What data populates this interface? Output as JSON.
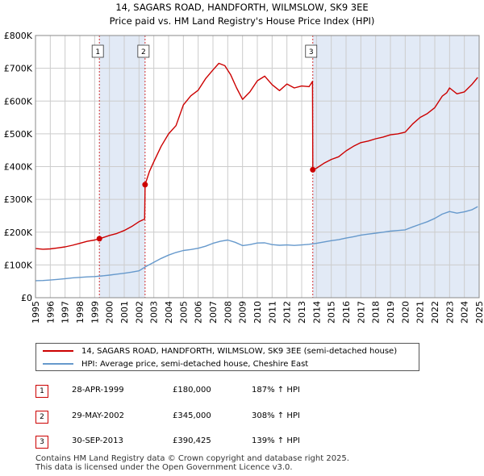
{
  "title_line1": "14, SAGARS ROAD, HANDFORTH, WILMSLOW, SK9 3EE",
  "title_line2": "Price paid vs. HM Land Registry's House Price Index (HPI)",
  "colors": {
    "property": "#cc0000",
    "hpi": "#6699cc",
    "shade": "#dde6f4",
    "grid": "#cccccc"
  },
  "chart_data": {
    "type": "line",
    "xlim": [
      1995,
      2025
    ],
    "ylim": [
      0,
      800000
    ],
    "x_ticks": [
      "1995",
      "1996",
      "1997",
      "1998",
      "1999",
      "2000",
      "2001",
      "2002",
      "2003",
      "2004",
      "2005",
      "2006",
      "2007",
      "2008",
      "2009",
      "2010",
      "2011",
      "2012",
      "2013",
      "2014",
      "2015",
      "2016",
      "2017",
      "2018",
      "2019",
      "2020",
      "2021",
      "2022",
      "2023",
      "2024",
      "2025"
    ],
    "y_ticks": [
      {
        "value": 0,
        "label": "£0"
      },
      {
        "value": 100000,
        "label": "£100K"
      },
      {
        "value": 200000,
        "label": "£200K"
      },
      {
        "value": 300000,
        "label": "£300K"
      },
      {
        "value": 400000,
        "label": "£400K"
      },
      {
        "value": 500000,
        "label": "£500K"
      },
      {
        "value": 600000,
        "label": "£600K"
      },
      {
        "value": 700000,
        "label": "£700K"
      },
      {
        "value": 800000,
        "label": "£800K"
      }
    ],
    "series": [
      {
        "name": "14, SAGARS ROAD, HANDFORTH, WILMSLOW, SK9 3EE (semi-detached house)",
        "color": "#cc0000",
        "points": [
          [
            1995.0,
            150000
          ],
          [
            1995.5,
            148000
          ],
          [
            1996.0,
            149000
          ],
          [
            1996.5,
            152000
          ],
          [
            1997.0,
            155000
          ],
          [
            1997.5,
            160000
          ],
          [
            1998.0,
            166000
          ],
          [
            1998.5,
            172000
          ],
          [
            1999.0,
            176000
          ],
          [
            1999.32,
            180000
          ],
          [
            1999.6,
            184000
          ],
          [
            2000.0,
            190000
          ],
          [
            2000.5,
            196000
          ],
          [
            2001.0,
            205000
          ],
          [
            2001.5,
            217000
          ],
          [
            2002.0,
            232000
          ],
          [
            2002.38,
            240000
          ],
          [
            2002.41,
            345000
          ],
          [
            2002.7,
            385000
          ],
          [
            2003.0,
            415000
          ],
          [
            2003.5,
            462000
          ],
          [
            2004.0,
            500000
          ],
          [
            2004.5,
            525000
          ],
          [
            2005.0,
            588000
          ],
          [
            2005.5,
            616000
          ],
          [
            2006.0,
            633000
          ],
          [
            2006.5,
            668000
          ],
          [
            2007.0,
            695000
          ],
          [
            2007.4,
            715000
          ],
          [
            2007.8,
            708000
          ],
          [
            2008.2,
            680000
          ],
          [
            2008.6,
            640000
          ],
          [
            2009.0,
            605000
          ],
          [
            2009.5,
            628000
          ],
          [
            2010.0,
            662000
          ],
          [
            2010.5,
            676000
          ],
          [
            2011.0,
            650000
          ],
          [
            2011.5,
            632000
          ],
          [
            2012.0,
            652000
          ],
          [
            2012.5,
            640000
          ],
          [
            2013.0,
            646000
          ],
          [
            2013.5,
            644000
          ],
          [
            2013.73,
            660000
          ],
          [
            2013.75,
            390425
          ],
          [
            2014.0,
            395000
          ],
          [
            2014.5,
            410000
          ],
          [
            2015.0,
            422000
          ],
          [
            2015.5,
            430000
          ],
          [
            2016.0,
            448000
          ],
          [
            2016.5,
            462000
          ],
          [
            2017.0,
            473000
          ],
          [
            2017.5,
            478000
          ],
          [
            2018.0,
            485000
          ],
          [
            2018.5,
            490000
          ],
          [
            2019.0,
            497000
          ],
          [
            2019.5,
            500000
          ],
          [
            2020.0,
            505000
          ],
          [
            2020.5,
            530000
          ],
          [
            2021.0,
            550000
          ],
          [
            2021.5,
            562000
          ],
          [
            2022.0,
            580000
          ],
          [
            2022.5,
            615000
          ],
          [
            2022.8,
            625000
          ],
          [
            2023.0,
            640000
          ],
          [
            2023.5,
            622000
          ],
          [
            2024.0,
            628000
          ],
          [
            2024.5,
            650000
          ],
          [
            2024.9,
            672000
          ]
        ]
      },
      {
        "name": "HPI: Average price, semi-detached house, Cheshire East",
        "color": "#6699cc",
        "points": [
          [
            1995.0,
            52000
          ],
          [
            1995.5,
            52500
          ],
          [
            1996.0,
            54000
          ],
          [
            1996.5,
            56000
          ],
          [
            1997.0,
            58000
          ],
          [
            1997.5,
            60500
          ],
          [
            1998.0,
            62000
          ],
          [
            1998.5,
            63500
          ],
          [
            1999.0,
            64500
          ],
          [
            1999.5,
            66500
          ],
          [
            2000.0,
            69000
          ],
          [
            2000.5,
            72000
          ],
          [
            2001.0,
            74500
          ],
          [
            2001.5,
            78000
          ],
          [
            2002.0,
            82000
          ],
          [
            2002.5,
            96000
          ],
          [
            2003.0,
            108000
          ],
          [
            2003.5,
            120000
          ],
          [
            2004.0,
            130000
          ],
          [
            2004.5,
            138000
          ],
          [
            2005.0,
            144000
          ],
          [
            2005.5,
            147000
          ],
          [
            2006.0,
            151000
          ],
          [
            2006.5,
            157000
          ],
          [
            2007.0,
            166000
          ],
          [
            2007.5,
            172000
          ],
          [
            2008.0,
            176000
          ],
          [
            2008.5,
            169000
          ],
          [
            2009.0,
            159000
          ],
          [
            2009.5,
            162000
          ],
          [
            2010.0,
            167000
          ],
          [
            2010.5,
            167500
          ],
          [
            2011.0,
            162000
          ],
          [
            2011.5,
            160000
          ],
          [
            2012.0,
            161000
          ],
          [
            2012.5,
            159500
          ],
          [
            2013.0,
            161000
          ],
          [
            2013.5,
            163000
          ],
          [
            2014.0,
            166000
          ],
          [
            2014.5,
            170000
          ],
          [
            2015.0,
            174000
          ],
          [
            2015.5,
            177000
          ],
          [
            2016.0,
            182000
          ],
          [
            2016.5,
            186000
          ],
          [
            2017.0,
            191000
          ],
          [
            2017.5,
            194000
          ],
          [
            2018.0,
            197000
          ],
          [
            2018.5,
            200000
          ],
          [
            2019.0,
            203000
          ],
          [
            2019.5,
            205000
          ],
          [
            2020.0,
            207000
          ],
          [
            2020.5,
            216000
          ],
          [
            2021.0,
            224000
          ],
          [
            2021.5,
            232000
          ],
          [
            2022.0,
            242000
          ],
          [
            2022.5,
            255000
          ],
          [
            2023.0,
            263000
          ],
          [
            2023.5,
            258000
          ],
          [
            2024.0,
            262000
          ],
          [
            2024.5,
            268000
          ],
          [
            2024.9,
            278000
          ]
        ]
      }
    ],
    "sales": [
      {
        "num": "1",
        "x": 1999.32,
        "y": 180000
      },
      {
        "num": "2",
        "x": 2002.41,
        "y": 345000
      },
      {
        "num": "3",
        "x": 2013.75,
        "y": 390425
      }
    ],
    "shaded_ranges": [
      [
        1999.32,
        2002.41
      ],
      [
        2013.75,
        2025
      ]
    ]
  },
  "legend": {
    "property_label": "14, SAGARS ROAD, HANDFORTH, WILMSLOW, SK9 3EE (semi-detached house)",
    "hpi_label": "HPI: Average price, semi-detached house, Cheshire East"
  },
  "sales_table": [
    {
      "num": "1",
      "date": "28-APR-1999",
      "price": "£180,000",
      "hpi": "187% ↑ HPI"
    },
    {
      "num": "2",
      "date": "29-MAY-2002",
      "price": "£345,000",
      "hpi": "308% ↑ HPI"
    },
    {
      "num": "3",
      "date": "30-SEP-2013",
      "price": "£390,425",
      "hpi": "139% ↑ HPI"
    }
  ],
  "footer_line1": "Contains HM Land Registry data © Crown copyright and database right 2025.",
  "footer_line2": "This data is licensed under the Open Government Licence v3.0."
}
